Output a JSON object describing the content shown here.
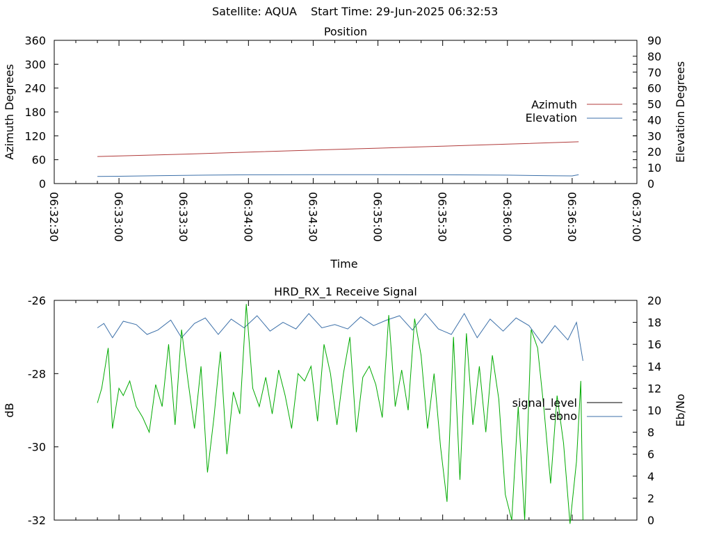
{
  "header": {
    "satellite": "Satellite: AQUA",
    "start_time": "Start Time: 29-Jun-2025 06:32:53"
  },
  "colors": {
    "azimuth": "#b03a3a",
    "elevation": "#3b6fa8",
    "signal_level": "#000000",
    "ebno": "#3b6fa8",
    "green_trace": "#00aa00"
  },
  "chart_data": [
    {
      "type": "line",
      "title": "Position",
      "xlabel": "Time",
      "ylabel": "Azimuth Degrees",
      "y2label": "Elevation Degrees",
      "x_ticks": [
        "06:32:30",
        "06:33:00",
        "06:33:30",
        "06:34:00",
        "06:34:30",
        "06:35:00",
        "06:35:30",
        "06:36:00",
        "06:36:30",
        "06:37:00"
      ],
      "xlim": [
        "06:32:30",
        "06:37:00"
      ],
      "ylim": [
        0,
        360
      ],
      "y2lim": [
        0,
        90
      ],
      "y_ticks": [
        "0",
        "60",
        "120",
        "180",
        "240",
        "300",
        "360"
      ],
      "y2_ticks": [
        "0",
        "10",
        "20",
        "30",
        "40",
        "50",
        "60",
        "70",
        "80",
        "90"
      ],
      "legend_position": "right",
      "series": [
        {
          "name": "Azimuth",
          "axis": "y",
          "color": "#b03a3a",
          "x": [
            "06:32:50",
            "06:33:30",
            "06:34:00",
            "06:34:30",
            "06:35:00",
            "06:35:30",
            "06:36:00",
            "06:36:33"
          ],
          "values": [
            68,
            74,
            79,
            84,
            89,
            94,
            99,
            105
          ]
        },
        {
          "name": "Elevation",
          "axis": "y2",
          "color": "#3b6fa8",
          "x": [
            "06:32:50",
            "06:33:00",
            "06:33:20",
            "06:33:40",
            "06:34:00",
            "06:34:30",
            "06:35:00",
            "06:35:30",
            "06:36:00",
            "06:36:20",
            "06:36:30",
            "06:36:33"
          ],
          "values": [
            4.5,
            4.6,
            5.0,
            5.3,
            5.5,
            5.6,
            5.6,
            5.5,
            5.3,
            4.9,
            4.8,
            5.6
          ]
        }
      ]
    },
    {
      "type": "line",
      "title": "HRD_RX_1 Receive Signal",
      "xlabel": "",
      "ylabel": "dB",
      "y2label": "Eb/No",
      "xlim": [
        "06:32:30",
        "06:37:00"
      ],
      "ylim": [
        -32,
        -26
      ],
      "y2lim": [
        0,
        20
      ],
      "y_ticks": [
        "-32",
        "-30",
        "-28",
        "-26"
      ],
      "y2_ticks": [
        "0",
        "2",
        "4",
        "6",
        "8",
        "10",
        "12",
        "14",
        "16",
        "18",
        "20"
      ],
      "legend_position": "right",
      "series": [
        {
          "name": "signal_level",
          "axis": "y",
          "color": "#000000",
          "x": [],
          "values": []
        },
        {
          "name": "ebno",
          "axis": "y2",
          "color": "#3b6fa8",
          "x": [
            "06:32:50",
            "06:32:53",
            "06:32:57",
            "06:33:02",
            "06:33:08",
            "06:33:13",
            "06:33:18",
            "06:33:24",
            "06:33:29",
            "06:33:35",
            "06:33:40",
            "06:33:46",
            "06:33:52",
            "06:33:58",
            "06:34:04",
            "06:34:10",
            "06:34:16",
            "06:34:22",
            "06:34:28",
            "06:34:34",
            "06:34:40",
            "06:34:46",
            "06:34:52",
            "06:34:58",
            "06:35:04",
            "06:35:10",
            "06:35:16",
            "06:35:22",
            "06:35:28",
            "06:35:34",
            "06:35:40",
            "06:35:46",
            "06:35:52",
            "06:35:58",
            "06:36:04",
            "06:36:10",
            "06:36:16",
            "06:36:22",
            "06:36:28",
            "06:36:32",
            "06:36:35"
          ],
          "values": [
            17.5,
            17.9,
            16.6,
            18.1,
            17.8,
            16.9,
            17.3,
            18.2,
            16.6,
            17.9,
            18.4,
            16.9,
            18.3,
            17.5,
            18.6,
            17.2,
            18.0,
            17.4,
            18.8,
            17.5,
            17.8,
            17.4,
            18.5,
            17.7,
            18.2,
            18.6,
            17.3,
            18.8,
            17.4,
            16.9,
            18.8,
            16.6,
            18.3,
            17.2,
            18.4,
            17.7,
            16.1,
            17.7,
            16.4,
            18.0,
            14.5
          ]
        },
        {
          "name": "",
          "axis": "y",
          "color": "#00aa00",
          "x": [
            "06:32:50",
            "06:32:52",
            "06:32:55",
            "06:32:57",
            "06:33:00",
            "06:33:02",
            "06:33:05",
            "06:33:08",
            "06:33:11",
            "06:33:14",
            "06:33:17",
            "06:33:20",
            "06:33:23",
            "06:33:26",
            "06:33:29",
            "06:33:32",
            "06:33:35",
            "06:33:38",
            "06:33:41",
            "06:33:44",
            "06:33:47",
            "06:33:50",
            "06:33:53",
            "06:33:56",
            "06:33:59",
            "06:34:02",
            "06:34:05",
            "06:34:08",
            "06:34:11",
            "06:34:14",
            "06:34:17",
            "06:34:20",
            "06:34:23",
            "06:34:26",
            "06:34:29",
            "06:34:32",
            "06:34:35",
            "06:34:38",
            "06:34:41",
            "06:34:44",
            "06:34:47",
            "06:34:50",
            "06:34:53",
            "06:34:56",
            "06:34:59",
            "06:35:02",
            "06:35:05",
            "06:35:08",
            "06:35:11",
            "06:35:14",
            "06:35:17",
            "06:35:20",
            "06:35:23",
            "06:35:26",
            "06:35:29",
            "06:35:32",
            "06:35:35",
            "06:35:38",
            "06:35:41",
            "06:35:44",
            "06:35:47",
            "06:35:50",
            "06:35:53",
            "06:35:56",
            "06:35:59",
            "06:36:02",
            "06:36:05",
            "06:36:08",
            "06:36:11",
            "06:36:14",
            "06:36:17",
            "06:36:20",
            "06:36:23",
            "06:36:26",
            "06:36:29",
            "06:36:32",
            "06:36:34",
            "06:36:35"
          ],
          "values": [
            -28.8,
            -28.4,
            -27.3,
            -29.5,
            -28.4,
            -28.6,
            -28.2,
            -28.9,
            -29.2,
            -29.6,
            -28.3,
            -28.9,
            -27.2,
            -29.4,
            -26.8,
            -28.2,
            -29.5,
            -27.8,
            -30.7,
            -29.2,
            -27.4,
            -30.2,
            -28.5,
            -29.1,
            -26.1,
            -28.4,
            -28.9,
            -28.1,
            -29.1,
            -27.9,
            -28.6,
            -29.5,
            -28.0,
            -28.2,
            -27.8,
            -29.3,
            -27.2,
            -28.0,
            -29.4,
            -28.0,
            -27.0,
            -29.6,
            -28.1,
            -27.8,
            -28.3,
            -29.2,
            -26.4,
            -28.9,
            -27.9,
            -29.0,
            -26.5,
            -27.5,
            -29.5,
            -28.0,
            -30.0,
            -31.5,
            -27.0,
            -30.9,
            -26.9,
            -29.4,
            -27.8,
            -29.6,
            -27.5,
            -28.7,
            -31.3,
            -32.0,
            -28.9,
            -32.0,
            -26.8,
            -27.3,
            -29.0,
            -31.0,
            -28.6,
            -29.9,
            -32.1,
            -30.4,
            -28.2,
            -32.0
          ]
        }
      ]
    }
  ]
}
